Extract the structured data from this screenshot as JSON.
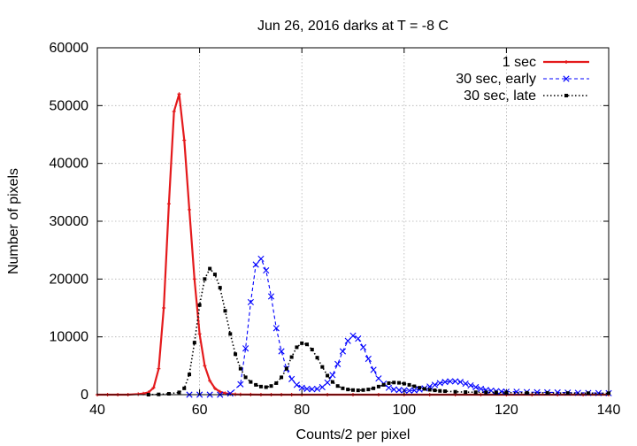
{
  "chart_data": {
    "type": "line",
    "title": "Jun 26, 2016 darks at T = -8 C",
    "xlabel": "Counts/2 per pixel",
    "ylabel": "Number of pixels",
    "xlim": [
      40,
      140
    ],
    "ylim": [
      0,
      60000
    ],
    "xticks": [
      "40",
      "60",
      "80",
      "100",
      "120",
      "140"
    ],
    "yticks": [
      "0",
      "10000",
      "20000",
      "30000",
      "40000",
      "50000",
      "60000"
    ],
    "grid": true,
    "legend_position": "top-right",
    "series": [
      {
        "name": "1 sec",
        "color": "#e41a1c",
        "line_style": "solid",
        "marker": "plus",
        "x": [
          40,
          42,
          44,
          46,
          48,
          49,
          50,
          51,
          52,
          53,
          54,
          55,
          56,
          57,
          58,
          59,
          60,
          61,
          62,
          63,
          64,
          65,
          66,
          67,
          68,
          70,
          72,
          74,
          76,
          78,
          80,
          85,
          90,
          95,
          100,
          105,
          110,
          115,
          120,
          125,
          130,
          135,
          140
        ],
        "y": [
          0,
          0,
          0,
          0,
          100,
          200,
          400,
          1200,
          4500,
          15000,
          33000,
          49000,
          52000,
          44000,
          32000,
          20000,
          10500,
          5000,
          2400,
          1100,
          500,
          250,
          120,
          60,
          30,
          10,
          0,
          0,
          0,
          0,
          0,
          0,
          0,
          0,
          0,
          0,
          0,
          0,
          0,
          0,
          0,
          0,
          0
        ]
      },
      {
        "name": "30 sec, early",
        "color": "#0000ff",
        "line_style": "dashed",
        "marker": "x",
        "x": [
          58,
          60,
          62,
          64,
          66,
          68,
          69,
          70,
          71,
          72,
          73,
          74,
          75,
          76,
          77,
          78,
          79,
          80,
          81,
          82,
          83,
          84,
          85,
          86,
          87,
          88,
          89,
          90,
          91,
          92,
          93,
          94,
          95,
          96,
          97,
          98,
          99,
          100,
          101,
          102,
          103,
          104,
          105,
          106,
          107,
          108,
          109,
          110,
          111,
          112,
          113,
          114,
          115,
          116,
          117,
          118,
          119,
          120,
          122,
          124,
          126,
          128,
          130,
          132,
          134,
          136,
          138,
          140
        ],
        "y": [
          0,
          0,
          0,
          0,
          200,
          1800,
          8000,
          16000,
          22500,
          23500,
          21500,
          17000,
          11500,
          7500,
          4500,
          2700,
          1700,
          1200,
          1000,
          950,
          1000,
          1300,
          2100,
          3400,
          5300,
          7500,
          9300,
          10200,
          9700,
          8200,
          6200,
          4300,
          2800,
          1900,
          1200,
          900,
          800,
          750,
          700,
          750,
          900,
          1100,
          1400,
          1700,
          2000,
          2200,
          2300,
          2300,
          2200,
          1900,
          1600,
          1300,
          1000,
          800,
          700,
          600,
          550,
          500,
          500,
          450,
          420,
          400,
          380,
          350,
          320,
          300,
          280,
          260
        ]
      },
      {
        "name": "30 sec, late",
        "color": "#000000",
        "line_style": "dotted",
        "marker": "square",
        "x": [
          50,
          52,
          54,
          56,
          57,
          58,
          59,
          60,
          61,
          62,
          63,
          64,
          65,
          66,
          67,
          68,
          69,
          70,
          71,
          72,
          73,
          74,
          75,
          76,
          77,
          78,
          79,
          80,
          81,
          82,
          83,
          84,
          85,
          86,
          87,
          88,
          89,
          90,
          91,
          92,
          93,
          94,
          95,
          96,
          97,
          98,
          99,
          100,
          101,
          102,
          103,
          104,
          105,
          106,
          107,
          108,
          110,
          112,
          114,
          116,
          118,
          120,
          124,
          128,
          132,
          136,
          140
        ],
        "y": [
          0,
          50,
          150,
          400,
          1100,
          3500,
          9000,
          15500,
          20000,
          21800,
          20800,
          18500,
          14500,
          10500,
          7000,
          4500,
          3000,
          2200,
          1700,
          1400,
          1300,
          1500,
          2000,
          3000,
          4500,
          6500,
          8200,
          8900,
          8700,
          7800,
          6400,
          4800,
          3300,
          2200,
          1500,
          1100,
          900,
          800,
          750,
          800,
          900,
          1100,
          1400,
          1700,
          2000,
          2100,
          2050,
          1900,
          1700,
          1450,
          1200,
          1000,
          850,
          750,
          650,
          600,
          500,
          450,
          420,
          400,
          380,
          350,
          320,
          300,
          280,
          260,
          250
        ]
      }
    ]
  }
}
